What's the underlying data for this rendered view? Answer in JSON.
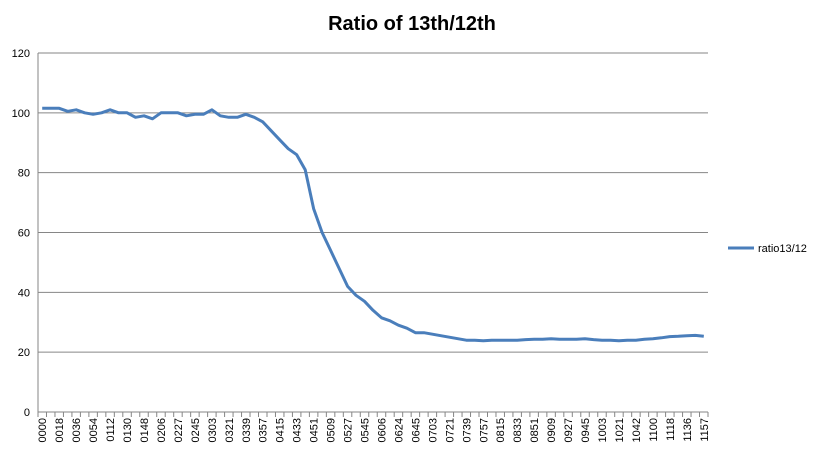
{
  "chart_data": {
    "type": "line",
    "title": "Ratio of 13th/12th",
    "categories": [
      "0000",
      null,
      "0018",
      null,
      "0036",
      null,
      "0054",
      null,
      "0112",
      null,
      "0130",
      null,
      "0148",
      null,
      "0206",
      null,
      "0227",
      null,
      "0245",
      null,
      "0303",
      null,
      "0321",
      null,
      "0339",
      null,
      "0357",
      null,
      "0415",
      null,
      "0433",
      null,
      "0451",
      null,
      "0509",
      null,
      "0527",
      null,
      "0545",
      null,
      "0606",
      null,
      "0624",
      null,
      "0645",
      null,
      "0703",
      null,
      "0721",
      null,
      "0739",
      null,
      "0757",
      null,
      "0815",
      null,
      "0833",
      null,
      "0851",
      null,
      "0909",
      null,
      "0927",
      null,
      "0945",
      null,
      "1003",
      null,
      "1021",
      null,
      "1042",
      null,
      "1100",
      null,
      "1118",
      null,
      "1136",
      null,
      "1157"
    ],
    "series": [
      {
        "name": "ratio13/12",
        "color": "#4a7ebb",
        "values": [
          101.5,
          101.5,
          101.5,
          100.5,
          101,
          100,
          99.5,
          100,
          101,
          100,
          100,
          98.5,
          99,
          98,
          100,
          100,
          100,
          99,
          99.5,
          99.5,
          101,
          99,
          98.5,
          98.5,
          99.5,
          98.5,
          97,
          94,
          91,
          88,
          86,
          81,
          68,
          60,
          54,
          48,
          42,
          39,
          37,
          34,
          31.5,
          30.5,
          29,
          28,
          26.5,
          26.5,
          26,
          25.5,
          25,
          24.5,
          24,
          24,
          23.8,
          24,
          24,
          24,
          24,
          24.2,
          24.3,
          24.3,
          24.5,
          24.3,
          24.3,
          24.3,
          24.5,
          24.2,
          24,
          24,
          23.8,
          24,
          24,
          24.3,
          24.5,
          24.8,
          25.2,
          25.3,
          25.5,
          25.6,
          25.3
        ]
      }
    ],
    "ylim": [
      0,
      120
    ],
    "yticks": [
      0,
      20,
      40,
      60,
      80,
      100,
      120
    ],
    "grid": true,
    "legend": "right"
  }
}
